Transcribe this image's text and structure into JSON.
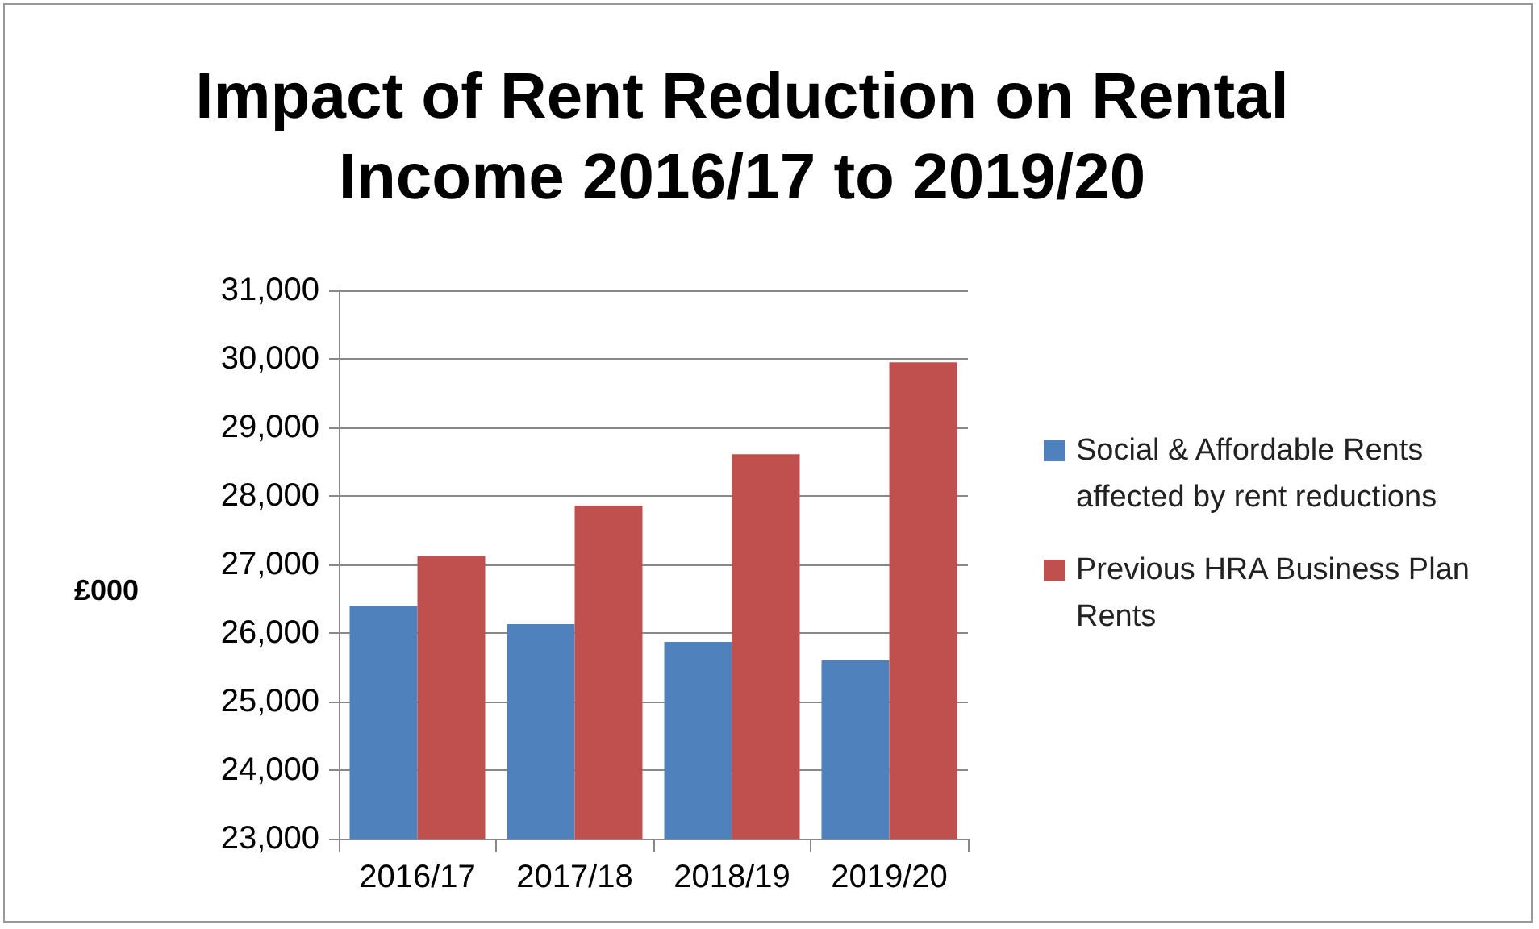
{
  "chart_data": {
    "type": "bar",
    "title": "Impact of Rent Reduction on Rental Income 2016/17 to 2019/20",
    "ylabel": "£000",
    "categories": [
      "2016/17",
      "2017/18",
      "2018/19",
      "2019/20"
    ],
    "series": [
      {
        "name": "Social & Affordable Rents affected by rent reductions",
        "color": "#4f81bd",
        "values": [
          26390,
          26130,
          25870,
          25600
        ]
      },
      {
        "name": "Previous HRA Business Plan Rents",
        "color": "#c0504d",
        "values": [
          27120,
          27860,
          28610,
          29950
        ]
      }
    ],
    "ylim": [
      23000,
      31000
    ],
    "yticks": [
      {
        "value": 23000,
        "label": "23,000"
      },
      {
        "value": 24000,
        "label": "24,000"
      },
      {
        "value": 25000,
        "label": "25,000"
      },
      {
        "value": 26000,
        "label": "26,000"
      },
      {
        "value": 27000,
        "label": "27,000"
      },
      {
        "value": 28000,
        "label": "28,000"
      },
      {
        "value": 29000,
        "label": "29,000"
      },
      {
        "value": 30000,
        "label": "30,000"
      },
      {
        "value": 31000,
        "label": "31,000"
      }
    ],
    "grid": "y",
    "legend": "right"
  }
}
